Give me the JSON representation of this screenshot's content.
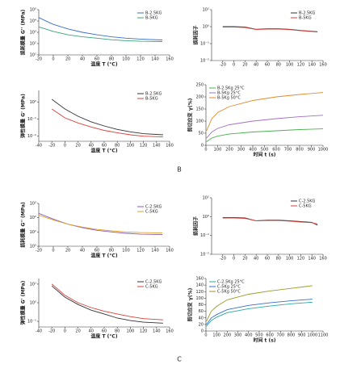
{
  "chart_data": [
    {
      "type": "line",
      "xlabel": "温度 T (°C)",
      "ylabel": "损耗模量 G'' (MPa)",
      "log_y": true,
      "legend": "upper right",
      "xlim": [
        -20,
        160
      ],
      "xticks": [
        -20,
        0,
        20,
        40,
        60,
        80,
        100,
        120,
        140,
        160
      ],
      "ylim": [
        10,
        100000
      ],
      "yticks": [
        {
          "value": 10,
          "label": "10¹"
        },
        {
          "value": 100,
          "label": "10²"
        },
        {
          "value": 1000,
          "label": "10³"
        },
        {
          "value": 10000,
          "label": "10⁴"
        },
        {
          "value": 100000,
          "label": "10⁵"
        }
      ],
      "x": [
        -20,
        0,
        20,
        40,
        60,
        80,
        100,
        120,
        150
      ],
      "series": [
        {
          "name": "B-2.5KG",
          "color": "#3b6fc4",
          "values": [
            20000,
            5000,
            2000,
            1000,
            600,
            400,
            300,
            250,
            210
          ]
        },
        {
          "name": "B-5KG",
          "color": "#3aa37a",
          "values": [
            3000,
            1200,
            600,
            400,
            300,
            220,
            180,
            160,
            150
          ]
        }
      ]
    },
    {
      "type": "line",
      "ylabel": "损耗因子",
      "log_y": true,
      "legend": "upper right",
      "xlim": [
        -40,
        160
      ],
      "xticks": [
        -20,
        0,
        20,
        40,
        60,
        80,
        100,
        120,
        140,
        160
      ],
      "ylim": [
        0.01,
        10
      ],
      "yticks": [
        {
          "value": 0.01,
          "label": "10⁻²"
        },
        {
          "value": 0.1,
          "label": "10⁻¹"
        },
        {
          "value": 1,
          "label": "10⁰"
        },
        {
          "value": 10,
          "label": "10¹"
        }
      ],
      "x": [
        -20,
        0,
        20,
        40,
        60,
        80,
        100,
        120,
        150
      ],
      "series": [
        {
          "name": "B-2.5KG",
          "color": "#333333",
          "values": [
            1.0,
            1.0,
            0.95,
            0.7,
            0.75,
            0.75,
            0.7,
            0.6,
            0.5
          ]
        },
        {
          "name": "B-5KG",
          "color": "#d9403a",
          "values": [
            0.95,
            0.95,
            0.9,
            0.68,
            0.72,
            0.72,
            0.67,
            0.58,
            0.48
          ]
        }
      ]
    },
    {
      "type": "line",
      "xlabel": "温度 T (°C)",
      "ylabel": "弹性模量 G' (MPa)",
      "log_y": true,
      "legend": "upper right",
      "xlim": [
        -40,
        160
      ],
      "xticks": [
        -40,
        -20,
        0,
        20,
        40,
        60,
        80,
        100,
        120,
        140,
        160
      ],
      "ylim": [
        0.005,
        5
      ],
      "yticks": [
        {
          "value": 0.01,
          "label": "10⁻²"
        },
        {
          "value": 0.1,
          "label": "10⁻¹"
        },
        {
          "value": 1,
          "label": "10⁰"
        }
      ],
      "x": [
        -20,
        0,
        20,
        40,
        60,
        80,
        100,
        120,
        150
      ],
      "series": [
        {
          "name": "B-2.5KG",
          "color": "#333333",
          "values": [
            1.5,
            0.4,
            0.15,
            0.07,
            0.04,
            0.025,
            0.018,
            0.014,
            0.012
          ]
        },
        {
          "name": "B-5KG",
          "color": "#d9403a",
          "values": [
            0.4,
            0.12,
            0.06,
            0.035,
            0.022,
            0.016,
            0.012,
            0.01,
            0.009
          ]
        }
      ]
    },
    {
      "type": "line",
      "xlabel": "时间 t (s)",
      "ylabel": "剪切应变 γ(%)",
      "legend": "upper left",
      "xlim": [
        0,
        1000
      ],
      "xticks": [
        0,
        100,
        200,
        300,
        400,
        500,
        600,
        700,
        800,
        900,
        1000
      ],
      "ylim": [
        0,
        250
      ],
      "yticks": [
        0,
        50,
        100,
        150,
        200,
        250
      ],
      "x": [
        5,
        50,
        100,
        200,
        400,
        600,
        800,
        1000
      ],
      "series": [
        {
          "name": "B-2.5Kg 25°C",
          "color": "#4cb050",
          "values": [
            15,
            30,
            38,
            47,
            55,
            60,
            65,
            68
          ]
        },
        {
          "name": "B-5Kg 25°C",
          "color": "#a070c8",
          "values": [
            30,
            55,
            70,
            85,
            100,
            110,
            118,
            124
          ]
        },
        {
          "name": "B-5Kg 50°C",
          "color": "#e08a2a",
          "values": [
            60,
            110,
            135,
            160,
            185,
            200,
            210,
            218
          ]
        }
      ]
    },
    {
      "type": "line",
      "xlabel": "温度 T (°C)",
      "ylabel": "损耗模量 G'' (MPa)",
      "log_y": true,
      "legend": "upper right",
      "xlim": [
        -20,
        160
      ],
      "xticks": [
        -20,
        0,
        20,
        40,
        60,
        80,
        100,
        120,
        140,
        160
      ],
      "ylim": [
        1,
        1000
      ],
      "yticks": [
        {
          "value": 1,
          "label": "10⁰"
        },
        {
          "value": 10,
          "label": "10¹"
        },
        {
          "value": 100,
          "label": "10²"
        },
        {
          "value": 1000,
          "label": "10³"
        }
      ],
      "x": [
        -20,
        0,
        20,
        40,
        60,
        80,
        100,
        120,
        150
      ],
      "series": [
        {
          "name": "C-2.5KG",
          "color": "#8a5cc0",
          "values": [
            200,
            80,
            35,
            20,
            13,
            10,
            8,
            7,
            6.5
          ]
        },
        {
          "name": "C-5KG",
          "color": "#e0a020",
          "values": [
            150,
            70,
            35,
            22,
            15,
            12,
            10,
            9,
            8.5
          ]
        }
      ]
    },
    {
      "type": "line",
      "ylabel": "损耗因子",
      "log_y": true,
      "legend": "upper right",
      "xlim": [
        -40,
        160
      ],
      "xticks": [
        -20,
        0,
        20,
        40,
        60,
        80,
        100,
        120,
        140,
        160
      ],
      "ylim": [
        0.01,
        10
      ],
      "yticks": [
        {
          "value": 0.01,
          "label": "10⁻²"
        },
        {
          "value": 0.1,
          "label": "10⁻¹"
        },
        {
          "value": 1,
          "label": "10⁰"
        },
        {
          "value": 10,
          "label": "10¹"
        }
      ],
      "x": [
        -20,
        0,
        20,
        40,
        60,
        80,
        100,
        120,
        140,
        150
      ],
      "series": [
        {
          "name": "C-2.5KG",
          "color": "#333333",
          "values": [
            0.9,
            0.9,
            0.85,
            0.6,
            0.65,
            0.65,
            0.6,
            0.55,
            0.5,
            0.35
          ]
        },
        {
          "name": "C-5KG",
          "color": "#d9403a",
          "values": [
            0.85,
            0.85,
            0.8,
            0.6,
            0.62,
            0.62,
            0.58,
            0.52,
            0.48,
            0.4
          ]
        }
      ]
    },
    {
      "type": "line",
      "xlabel": "温度 T (°C)",
      "ylabel": "弹性模量 G' (MPa)",
      "log_y": true,
      "legend": "upper right",
      "xlim": [
        -40,
        160
      ],
      "xticks": [
        -40,
        -20,
        0,
        20,
        40,
        60,
        80,
        100,
        120,
        140,
        160
      ],
      "ylim": [
        0.05,
        20
      ],
      "yticks": [
        {
          "value": 0.1,
          "label": "10⁻¹"
        },
        {
          "value": 1,
          "label": "10⁰"
        },
        {
          "value": 10,
          "label": "10¹"
        }
      ],
      "x": [
        -20,
        0,
        20,
        40,
        60,
        80,
        100,
        120,
        150
      ],
      "series": [
        {
          "name": "C-2.5KG",
          "color": "#333333",
          "values": [
            8,
            2,
            0.8,
            0.4,
            0.25,
            0.15,
            0.11,
            0.09,
            0.08
          ]
        },
        {
          "name": "C-5KG",
          "color": "#d9403a",
          "values": [
            10,
            2.5,
            1,
            0.55,
            0.35,
            0.25,
            0.18,
            0.14,
            0.12
          ]
        }
      ]
    },
    {
      "type": "line",
      "xlabel": "时间 t (s)",
      "ylabel": "剪切应变 γ(%)",
      "legend": "upper left",
      "xlim": [
        0,
        1100
      ],
      "xticks": [
        0,
        100,
        200,
        300,
        400,
        500,
        600,
        700,
        800,
        900,
        1000,
        1100
      ],
      "ylim": [
        0,
        160
      ],
      "yticks": [
        0,
        20,
        40,
        60,
        80,
        100,
        120,
        140,
        160
      ],
      "x": [
        5,
        50,
        100,
        200,
        400,
        600,
        800,
        1000
      ],
      "series": [
        {
          "name": "C-2.5Kg 25°C",
          "color": "#2aa8a8",
          "values": [
            15,
            32,
            42,
            56,
            68,
            76,
            83,
            88
          ]
        },
        {
          "name": "C-5Kg 25°C",
          "color": "#3b6fc4",
          "values": [
            20,
            40,
            50,
            65,
            78,
            86,
            92,
            97
          ]
        },
        {
          "name": "C-5Kg 50°C",
          "color": "#9a9a2a",
          "values": [
            30,
            60,
            75,
            95,
            112,
            122,
            130,
            138
          ]
        }
      ]
    }
  ],
  "panel_labels": [
    "B",
    "C"
  ]
}
